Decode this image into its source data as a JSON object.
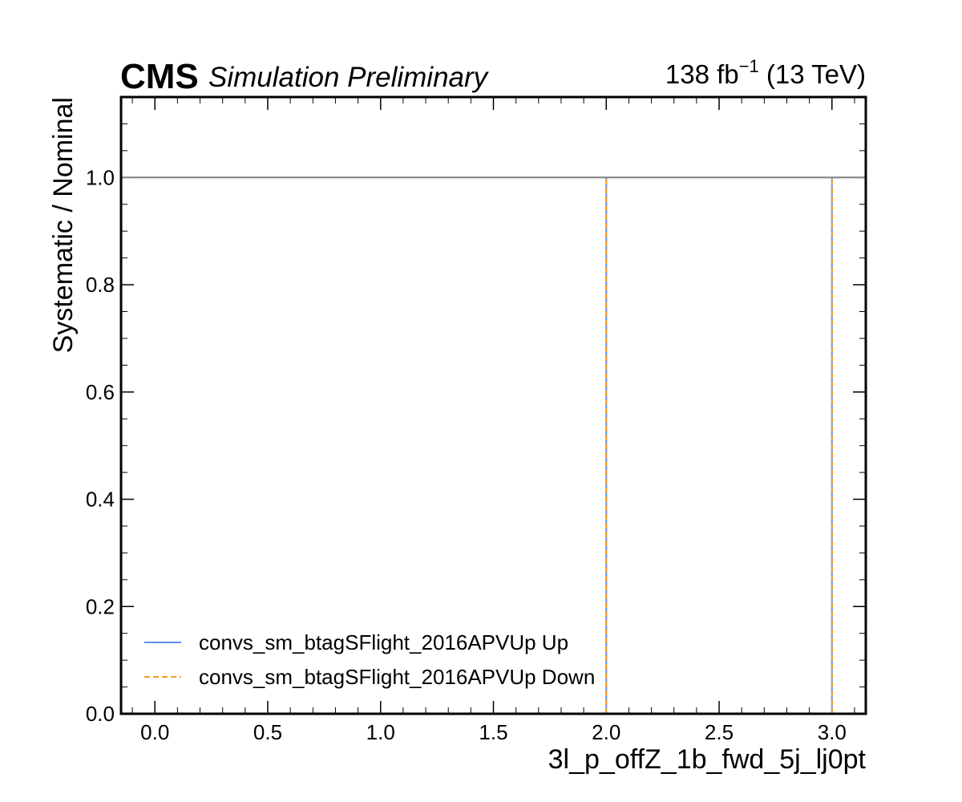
{
  "header": {
    "experiment": "CMS",
    "status": "Simulation Preliminary",
    "lumi_value": "138 fb",
    "lumi_exponent": "−1",
    "lumi_energy": " (13 TeV)"
  },
  "chart_data": {
    "type": "line",
    "xlabel": "3l_p_offZ_1b_fwd_5j_lj0pt",
    "ylabel": "Systematic / Nominal",
    "xlim": [
      -0.15,
      3.15
    ],
    "ylim": [
      0.0,
      1.15
    ],
    "x_ticks": [
      "0.0",
      "0.5",
      "1.0",
      "1.5",
      "2.0",
      "2.5",
      "3.0"
    ],
    "y_ticks": [
      "0.0",
      "0.2",
      "0.4",
      "0.6",
      "0.8",
      "1.0"
    ],
    "reference_line": {
      "y": 1.0,
      "color": "#808080"
    },
    "series": [
      {
        "name": "convs_sm_btagSFlight_2016APVUp Up",
        "color": "#5790fc",
        "style": "solid",
        "x": [
          2.0,
          2.0,
          3.0,
          3.0
        ],
        "y": [
          0.0,
          1.0,
          0.0,
          1.0
        ]
      },
      {
        "name": "convs_sm_btagSFlight_2016APVUp Down",
        "color": "#f89c20",
        "style": "dashed",
        "x": [
          2.0,
          2.0,
          3.0,
          3.0
        ],
        "y": [
          0.0,
          1.0,
          0.0,
          1.0
        ]
      }
    ],
    "legend_position": "lower-left",
    "grid": false
  }
}
